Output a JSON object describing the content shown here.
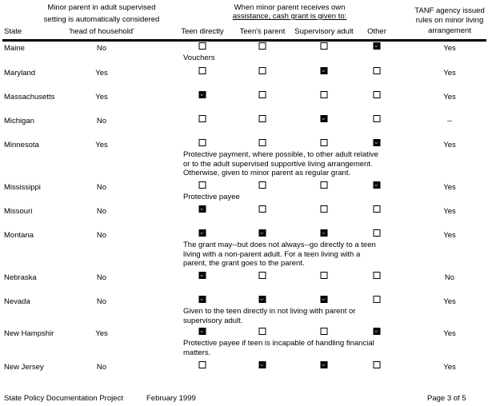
{
  "header": {
    "state": "State",
    "head_of_household": [
      "Minor parent in adult supervised",
      "setting is automatically considered",
      "'head of household'"
    ],
    "cash_grant": [
      "When minor parent receives own",
      "assistance, cash grant is given to:"
    ],
    "teen_directly": "Teen directly",
    "teens_parent": "Teen's parent",
    "supervisory_adult": "Supervisory adult",
    "other": "Other",
    "tanf": [
      "TANF agency issued",
      "rules on minor living",
      "arrangement"
    ]
  },
  "rows": [
    {
      "state": "Maine",
      "hoh": "No",
      "checks": [
        false,
        false,
        false,
        true
      ],
      "tanf": "Yes",
      "note": "Vouchers"
    },
    {
      "state": "Maryland",
      "hoh": "Yes",
      "checks": [
        false,
        false,
        true,
        false
      ],
      "tanf": "Yes",
      "note": ""
    },
    {
      "state": "Massachusetts",
      "hoh": "Yes",
      "checks": [
        true,
        false,
        false,
        false
      ],
      "tanf": "Yes",
      "note": ""
    },
    {
      "state": "Michigan",
      "hoh": "No",
      "checks": [
        false,
        false,
        true,
        false
      ],
      "tanf": "--",
      "note": ""
    },
    {
      "state": "Minnesota",
      "hoh": "Yes",
      "checks": [
        false,
        false,
        false,
        true
      ],
      "tanf": "Yes",
      "note": "Protective payment, where possible, to other adult relative\nor to the adult supervised supportive living arrangement.\nOtherwise, given to minor parent as regular grant."
    },
    {
      "state": "Mississippi",
      "hoh": "No",
      "checks": [
        false,
        false,
        false,
        true
      ],
      "tanf": "Yes",
      "note": "Protective payee"
    },
    {
      "state": "Missouri",
      "hoh": "No",
      "checks": [
        true,
        false,
        false,
        false
      ],
      "tanf": "Yes",
      "note": ""
    },
    {
      "state": "Montana",
      "hoh": "No",
      "checks": [
        true,
        true,
        true,
        false
      ],
      "tanf": "Yes",
      "note": "The grant may--but does not always--go directly to a teen\nliving with a non-parent adult.  For a teen living with a\nparent, the grant goes to the parent."
    },
    {
      "state": "Nebraska",
      "hoh": "No",
      "checks": [
        true,
        false,
        false,
        false
      ],
      "tanf": "No",
      "note": ""
    },
    {
      "state": "Nevada",
      "hoh": "No",
      "checks": [
        true,
        true,
        true,
        false
      ],
      "tanf": "Yes",
      "note": "Given to the teen directly in not living with parent or\nsupervisory adult."
    },
    {
      "state": "New Hampshir",
      "hoh": "Yes",
      "checks": [
        true,
        false,
        false,
        true
      ],
      "tanf": "Yes",
      "note": "Protective payee if teen is incapable of handling financial\nmatters."
    },
    {
      "state": "New Jersey",
      "hoh": "No",
      "checks": [
        false,
        true,
        true,
        false
      ],
      "tanf": "Yes",
      "note": ""
    }
  ],
  "footer": {
    "project": "State Policy Documentation Project",
    "date": "February 1999",
    "page": "Page 3 of 5"
  }
}
